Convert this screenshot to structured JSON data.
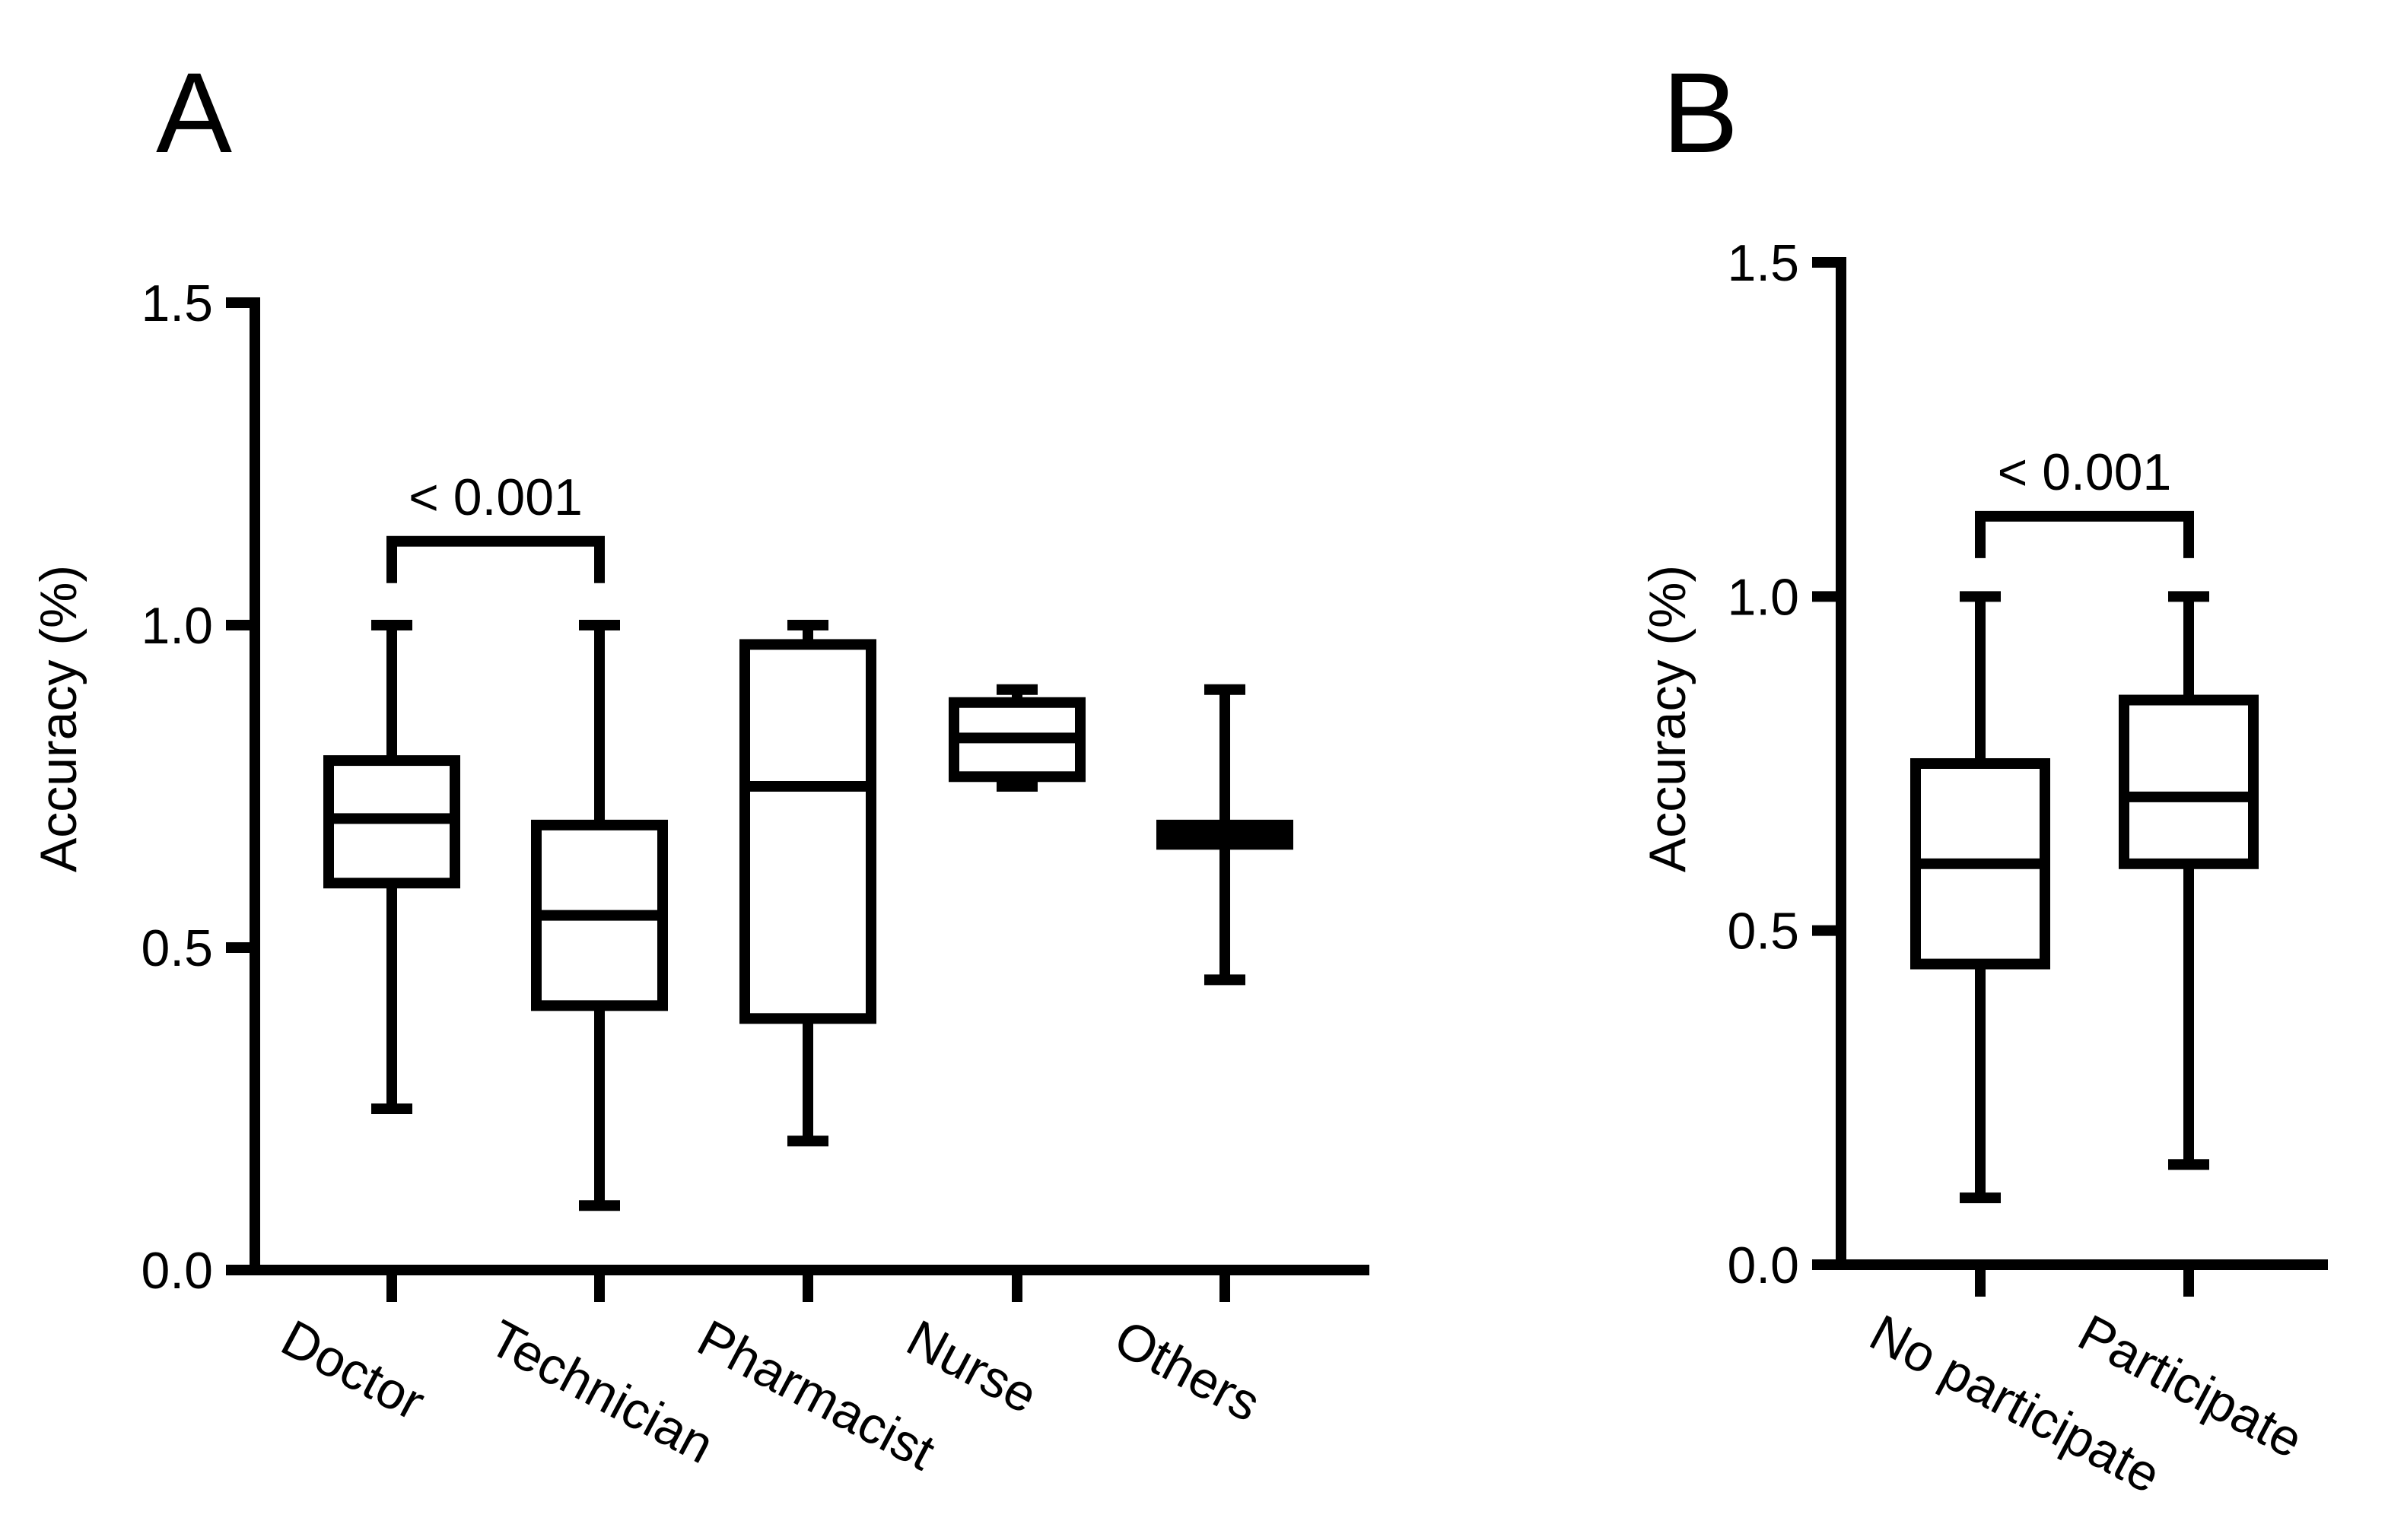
{
  "chart_data": [
    {
      "panel": "A",
      "type": "box",
      "ylabel": "Accuracy (%)",
      "ylim": [
        0,
        1.5
      ],
      "yticks": [
        "0.0",
        "0.5",
        "1.0",
        "1.5"
      ],
      "categories": [
        "Doctor",
        "Technician",
        "Pharmacist",
        "Nurse",
        "Others"
      ],
      "boxes": [
        {
          "min": 0.25,
          "q1": 0.6,
          "median": 0.7,
          "q3": 0.79,
          "max": 1.0
        },
        {
          "min": 0.1,
          "q1": 0.41,
          "median": 0.55,
          "q3": 0.69,
          "max": 1.0
        },
        {
          "min": 0.2,
          "q1": 0.39,
          "median": 0.75,
          "q3": 0.97,
          "max": 1.0
        },
        {
          "min": 0.75,
          "q1": 0.765,
          "median": 0.825,
          "q3": 0.88,
          "max": 0.9
        },
        {
          "min": 0.45,
          "q1": 0.66,
          "median": 0.675,
          "q3": 0.69,
          "max": 0.9
        }
      ],
      "significance": [
        {
          "from": 0,
          "to": 1,
          "label": "< 0.001",
          "y": 1.13
        }
      ]
    },
    {
      "panel": "B",
      "type": "box",
      "ylabel": "Accuracy (%)",
      "ylim": [
        0,
        1.5
      ],
      "yticks": [
        "0.0",
        "0.5",
        "1.0",
        "1.5"
      ],
      "categories": [
        "No participate",
        "Participate"
      ],
      "boxes": [
        {
          "min": 0.1,
          "q1": 0.45,
          "median": 0.6,
          "q3": 0.75,
          "max": 1.0
        },
        {
          "min": 0.15,
          "q1": 0.6,
          "median": 0.7,
          "q3": 0.845,
          "max": 1.0
        }
      ],
      "significance": [
        {
          "from": 0,
          "to": 1,
          "label": "< 0.001",
          "y": 1.12
        }
      ]
    }
  ]
}
